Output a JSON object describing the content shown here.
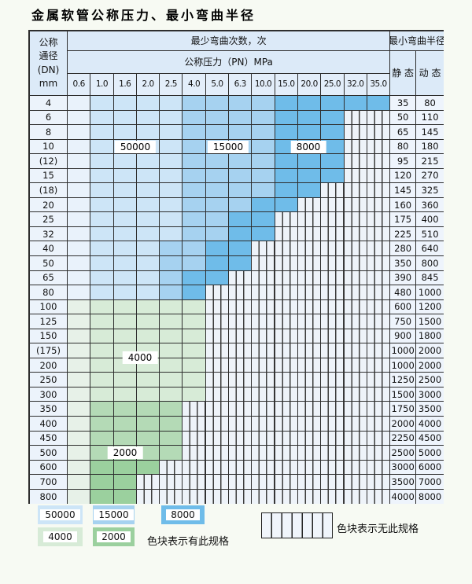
{
  "page": {
    "title": "金属软管公称压力、最小弯曲半径"
  },
  "palette": {
    "b1": "#e9f2fb",
    "b2": "#cde5f7",
    "b3": "#a6d2f0",
    "b4": "#6fbce9",
    "g1": "#e7f1e8",
    "g2": "#d7ebd7",
    "g3": "#b4dab6",
    "g4": "#9bd09e",
    "grid_line": "#2e2e2e"
  },
  "table": {
    "header": {
      "dn_lines": [
        "公称",
        "通径",
        "(DN)",
        "mm"
      ],
      "cycles_title": "最少弯曲次数，次",
      "pressure_title": "公称压力（PN）MPa",
      "radius_title": "最小弯曲半径",
      "static_label": "静 态",
      "dynamic_label": "动 态",
      "pressure_columns": [
        "0.6",
        "1.0",
        "1.6",
        "2.0",
        "2.5",
        "4.0",
        "5.0",
        "6.3",
        "10.0",
        "15.0",
        "20.0",
        "25.0",
        "32.0",
        "35.0"
      ]
    },
    "rows": [
      {
        "dn": "4",
        "shades": [
          "b1",
          "b2",
          "b2",
          "b2",
          "b2",
          "b3",
          "b3",
          "b3",
          "b3",
          "b4",
          "b4",
          "b4",
          "b4",
          "b4"
        ],
        "static": "35",
        "dynamic": "80"
      },
      {
        "dn": "6",
        "shades": [
          "b1",
          "b2",
          "b2",
          "b2",
          "b2",
          "b3",
          "b3",
          "b3",
          "b3",
          "b4",
          "b4",
          "b4"
        ],
        "static": "50",
        "dynamic": "110"
      },
      {
        "dn": "8",
        "shades": [
          "b1",
          "b2",
          "b2",
          "b2",
          "b2",
          "b3",
          "b3",
          "b3",
          "b3",
          "b4",
          "b4",
          "b4"
        ],
        "static": "65",
        "dynamic": "145"
      },
      {
        "dn": "10",
        "shades": [
          "b1",
          "b2",
          "b2",
          "b2",
          "b2",
          "b3",
          "b3",
          "b3",
          "b3",
          "b4",
          "b4",
          "b4"
        ],
        "static": "80",
        "dynamic": "180"
      },
      {
        "dn": "(12)",
        "shades": [
          "b1",
          "b2",
          "b2",
          "b2",
          "b2",
          "b3",
          "b3",
          "b3",
          "b3",
          "b4",
          "b4",
          "b4"
        ],
        "static": "95",
        "dynamic": "215"
      },
      {
        "dn": "15",
        "shades": [
          "b1",
          "b2",
          "b2",
          "b2",
          "b2",
          "b3",
          "b3",
          "b3",
          "b3",
          "b4",
          "b4",
          "b4"
        ],
        "static": "120",
        "dynamic": "270"
      },
      {
        "dn": "(18)",
        "shades": [
          "b1",
          "b2",
          "b2",
          "b2",
          "b2",
          "b3",
          "b3",
          "b3",
          "b3",
          "b4",
          "b4"
        ],
        "static": "145",
        "dynamic": "325"
      },
      {
        "dn": "20",
        "shades": [
          "b1",
          "b2",
          "b2",
          "b2",
          "b2",
          "b3",
          "b3",
          "b3",
          "b4",
          "b4"
        ],
        "static": "160",
        "dynamic": "360"
      },
      {
        "dn": "25",
        "shades": [
          "b1",
          "b2",
          "b2",
          "b2",
          "b2",
          "b3",
          "b3",
          "b4",
          "b4"
        ],
        "static": "175",
        "dynamic": "400"
      },
      {
        "dn": "32",
        "shades": [
          "b1",
          "b2",
          "b2",
          "b2",
          "b2",
          "b3",
          "b3",
          "b4",
          "b4"
        ],
        "static": "225",
        "dynamic": "510"
      },
      {
        "dn": "40",
        "shades": [
          "b1",
          "b2",
          "b2",
          "b2",
          "b3",
          "b3",
          "b4",
          "b4"
        ],
        "static": "280",
        "dynamic": "640"
      },
      {
        "dn": "50",
        "shades": [
          "b1",
          "b2",
          "b2",
          "b2",
          "b3",
          "b3",
          "b4",
          "b4"
        ],
        "static": "350",
        "dynamic": "800"
      },
      {
        "dn": "65",
        "shades": [
          "b1",
          "b2",
          "b2",
          "b2",
          "b3",
          "b4",
          "b4"
        ],
        "static": "390",
        "dynamic": "845"
      },
      {
        "dn": "80",
        "shades": [
          "b1",
          "b2",
          "b2",
          "b2",
          "b3",
          "b4"
        ],
        "static": "480",
        "dynamic": "1000"
      },
      {
        "dn": "100",
        "shades": [
          "g1",
          "g2",
          "g2",
          "g2",
          "g2",
          "g2"
        ],
        "static": "600",
        "dynamic": "1200"
      },
      {
        "dn": "125",
        "shades": [
          "g1",
          "g2",
          "g2",
          "g2",
          "g2",
          "g2"
        ],
        "static": "750",
        "dynamic": "1500"
      },
      {
        "dn": "150",
        "shades": [
          "g1",
          "g2",
          "g2",
          "g2",
          "g2",
          "g2"
        ],
        "static": "900",
        "dynamic": "1800"
      },
      {
        "dn": "(175)",
        "shades": [
          "g1",
          "g2",
          "g2",
          "g2",
          "g2",
          "g2"
        ],
        "static": "1000",
        "dynamic": "2000"
      },
      {
        "dn": "200",
        "shades": [
          "g1",
          "g2",
          "g2",
          "g2",
          "g2",
          "g2"
        ],
        "static": "1000",
        "dynamic": "2000"
      },
      {
        "dn": "250",
        "shades": [
          "g1",
          "g2",
          "g2",
          "g2",
          "g2",
          "g2"
        ],
        "static": "1250",
        "dynamic": "2500"
      },
      {
        "dn": "300",
        "shades": [
          "g1",
          "g2",
          "g2",
          "g2",
          "g2",
          "g2"
        ],
        "static": "1500",
        "dynamic": "3000"
      },
      {
        "dn": "350",
        "shades": [
          "g1",
          "g3",
          "g3",
          "g3",
          "g3"
        ],
        "static": "1750",
        "dynamic": "3500"
      },
      {
        "dn": "400",
        "shades": [
          "g1",
          "g3",
          "g3",
          "g3",
          "g3"
        ],
        "static": "2000",
        "dynamic": "4000"
      },
      {
        "dn": "450",
        "shades": [
          "g1",
          "g3",
          "g3",
          "g3",
          "g3"
        ],
        "static": "2250",
        "dynamic": "4500"
      },
      {
        "dn": "500",
        "shades": [
          "g1",
          "g3",
          "g3",
          "g3",
          "g3"
        ],
        "static": "2500",
        "dynamic": "5000"
      },
      {
        "dn": "600",
        "shades": [
          "g1",
          "g4",
          "g4",
          "g4"
        ],
        "static": "3000",
        "dynamic": "6000"
      },
      {
        "dn": "700",
        "shades": [
          "g1",
          "g4",
          "g4"
        ],
        "static": "3500",
        "dynamic": "7000"
      },
      {
        "dn": "800",
        "shades": [
          "g1",
          "g4",
          "g4"
        ],
        "static": "4000",
        "dynamic": "8000"
      }
    ]
  },
  "overlays": {
    "cycles_50000": "50000",
    "cycles_15000": "15000",
    "cycles_8000": "8000",
    "cycles_4000": "4000",
    "cycles_2000": "2000"
  },
  "legend": {
    "blocks": [
      {
        "label": "50000",
        "color_key": "b2"
      },
      {
        "label": "15000",
        "color_key": "b3"
      },
      {
        "label": "8000",
        "color_key": "b4"
      },
      {
        "label": "4000",
        "color_key": "g2"
      },
      {
        "label": "2000",
        "color_key": "g4"
      }
    ],
    "has_spec_note": "色块表示有此规格",
    "no_spec_note": "色块表示无此规格"
  }
}
